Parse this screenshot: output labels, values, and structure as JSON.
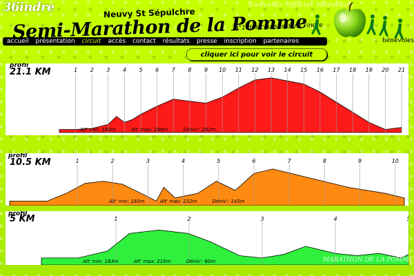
{
  "header": {
    "site_tag": "36indre",
    "place": "Neuvy St Sépulchre",
    "brand": "Semi-Marathon de la Pomme",
    "tagline": "n°1 des courses dans l'indre",
    "souvenir": "Souvenir Officiel Marathon",
    "benevoles": "bénévoles"
  },
  "nav": {
    "items": [
      {
        "label": "accueil",
        "active": false
      },
      {
        "label": "présentation",
        "active": false
      },
      {
        "label": "circuit",
        "active": true
      },
      {
        "label": "accès",
        "active": false
      },
      {
        "label": "contact",
        "active": false
      },
      {
        "label": "résultats",
        "active": false
      },
      {
        "label": "presse",
        "active": false
      },
      {
        "label": "inscription",
        "active": false
      },
      {
        "label": "partenaires",
        "active": false
      }
    ]
  },
  "cta": {
    "label": "cliquer ici pour voir le circuit"
  },
  "watermark": "MARATHON DE LA POMME",
  "colors": {
    "page_bg": "#b7f000",
    "accent": "#c8ff00",
    "red": "#ff1a1a",
    "orange": "#ff8a12",
    "green": "#2ff13d"
  },
  "profiles": [
    {
      "label": "profil",
      "distance": "21.1 KM",
      "color": "#ff1a1a",
      "km_markers": [
        "1",
        "2",
        "3",
        "4",
        "5",
        "6",
        "7",
        "8",
        "9",
        "10",
        "11",
        "12",
        "13",
        "14",
        "15",
        "16",
        "17",
        "18",
        "19",
        "20",
        "21"
      ],
      "stats": {
        "min": "Alt' min: 183m",
        "max": "Alt' max: 288m",
        "deniv": "Déniv': 292m"
      },
      "chart_data": {
        "type": "area",
        "x_km": [
          0,
          1,
          2,
          3,
          3.5,
          4,
          4.5,
          5,
          6,
          7,
          8,
          9,
          10,
          11,
          12,
          13,
          14,
          15,
          16,
          17,
          18,
          19,
          20,
          21
        ],
        "alt_m": [
          186,
          186,
          188,
          196,
          212,
          200,
          206,
          216,
          232,
          246,
          242,
          238,
          250,
          268,
          284,
          288,
          282,
          276,
          260,
          240,
          220,
          200,
          186,
          190
        ]
      }
    },
    {
      "label": "profil",
      "distance": "10.5 KM",
      "color": "#ff8a12",
      "km_markers": [
        "1",
        "2",
        "3",
        "4",
        "5",
        "6",
        "7",
        "8",
        "9",
        "10"
      ],
      "stats": {
        "min": "Alt' min: 183m",
        "max": "Alt' max: 232m",
        "deniv": "Déniv': 145m"
      },
      "chart_data": {
        "type": "area",
        "x_km": [
          0,
          1,
          1.5,
          2,
          2.5,
          3,
          3.5,
          3.9,
          4.1,
          4.4,
          5,
          5.5,
          6,
          6.5,
          7,
          8,
          9,
          10,
          10.5
        ],
        "alt_m": [
          186,
          186,
          196,
          209,
          212,
          208,
          196,
          186,
          204,
          190,
          196,
          212,
          200,
          222,
          228,
          216,
          204,
          196,
          190
        ]
      }
    },
    {
      "label": "profil",
      "distance": "5 KM",
      "color": "#2ff13d",
      "km_markers": [
        "1",
        "2",
        "3",
        "4",
        "5"
      ],
      "stats": {
        "min": "Alt' min: 183m",
        "max": "Alt' max: 210m",
        "deniv": "Déniv': 60m"
      },
      "chart_data": {
        "type": "area",
        "x_km": [
          0,
          0.5,
          0.9,
          1.2,
          1.6,
          2,
          2.3,
          2.7,
          3,
          3.3,
          3.6,
          4,
          4.3,
          4.6,
          4.9,
          5
        ],
        "alt_m": [
          186,
          186,
          192,
          207,
          210,
          207,
          200,
          188,
          186,
          189,
          196,
          190,
          188,
          190,
          186,
          189
        ]
      }
    }
  ]
}
